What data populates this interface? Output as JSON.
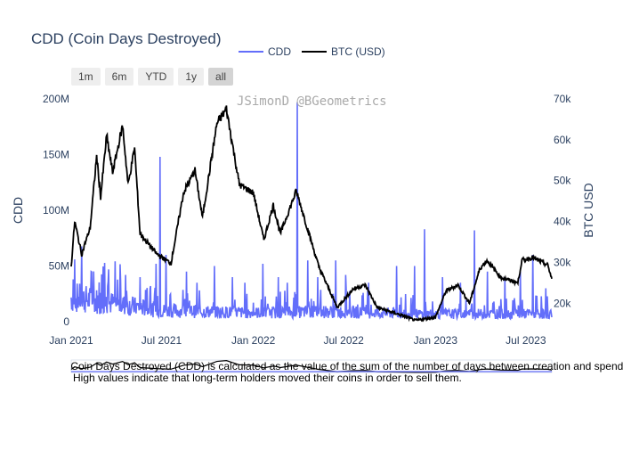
{
  "title": "CDD (Coin Days Destroyed)",
  "watermark": "JSimonD @BGeometrics",
  "legend": [
    {
      "name": "CDD",
      "color": "#636efa"
    },
    {
      "name": "BTC (USD)",
      "color": "#000000"
    }
  ],
  "range_buttons": [
    {
      "label": "1m",
      "active": false
    },
    {
      "label": "6m",
      "active": false
    },
    {
      "label": "YTD",
      "active": false
    },
    {
      "label": "1y",
      "active": false
    },
    {
      "label": "all",
      "active": true
    }
  ],
  "note_lines": [
    " Coin Days Destroyed (CDD) is calculated as the value of the sum of the number of days between creation and spend",
    "High values indicate that long-term holders moved their coins in order to sell them."
  ],
  "chart_data": {
    "type": "line",
    "x_range": [
      "2021-01-01",
      "2023-08-22"
    ],
    "x_ticks": [
      {
        "date": "2021-01-01",
        "label": "Jan 2021"
      },
      {
        "date": "2021-07-01",
        "label": "Jul 2021"
      },
      {
        "date": "2022-01-01",
        "label": "Jan 2022"
      },
      {
        "date": "2022-07-01",
        "label": "Jul 2022"
      },
      {
        "date": "2023-01-01",
        "label": "Jan 2023"
      },
      {
        "date": "2023-07-01",
        "label": "Jul 2023"
      }
    ],
    "y_left": {
      "label": "CDD",
      "range": [
        0,
        200000000
      ],
      "ticks": [
        {
          "v": 0,
          "label": "0"
        },
        {
          "v": 50000000,
          "label": "50M"
        },
        {
          "v": 100000000,
          "label": "100M"
        },
        {
          "v": 150000000,
          "label": "150M"
        },
        {
          "v": 200000000,
          "label": "200M"
        }
      ]
    },
    "y_right": {
      "label": "BTC USD",
      "range": [
        15500,
        70000
      ],
      "ticks": [
        {
          "v": 20000,
          "label": "20k"
        },
        {
          "v": 30000,
          "label": "30k"
        },
        {
          "v": 40000,
          "label": "40k"
        },
        {
          "v": 50000,
          "label": "50k"
        },
        {
          "v": 60000,
          "label": "60k"
        },
        {
          "v": 70000,
          "label": "70k"
        }
      ]
    },
    "grid": false,
    "series": [
      {
        "name": "CDD",
        "axis": "left",
        "color": "#636efa",
        "base": [
          [
            "2021-01-01",
            22000000
          ],
          [
            "2021-04-01",
            16000000
          ],
          [
            "2021-07-01",
            10000000
          ],
          [
            "2021-10-01",
            9000000
          ],
          [
            "2022-01-01",
            8000000
          ],
          [
            "2022-06-01",
            9000000
          ],
          [
            "2022-12-01",
            7000000
          ],
          [
            "2023-06-01",
            7000000
          ],
          [
            "2023-08-22",
            7000000
          ]
        ],
        "spikes": [
          [
            "2021-01-05",
            38000000
          ],
          [
            "2021-02-10",
            45000000
          ],
          [
            "2021-03-15",
            32000000
          ],
          [
            "2021-04-20",
            42000000
          ],
          [
            "2021-05-19",
            40000000
          ],
          [
            "2021-06-20",
            52000000
          ],
          [
            "2021-06-28",
            148000000
          ],
          [
            "2021-07-10",
            60000000
          ],
          [
            "2021-08-20",
            45000000
          ],
          [
            "2021-09-10",
            35000000
          ],
          [
            "2021-10-15",
            50000000
          ],
          [
            "2021-11-20",
            40000000
          ],
          [
            "2021-12-15",
            35000000
          ],
          [
            "2022-01-20",
            52000000
          ],
          [
            "2022-02-20",
            40000000
          ],
          [
            "2022-03-10",
            35000000
          ],
          [
            "2022-03-30",
            197000000
          ],
          [
            "2022-04-20",
            55000000
          ],
          [
            "2022-05-10",
            40000000
          ],
          [
            "2022-06-15",
            55000000
          ],
          [
            "2022-07-05",
            42000000
          ],
          [
            "2022-08-20",
            35000000
          ],
          [
            "2022-10-15",
            50000000
          ],
          [
            "2022-11-20",
            50000000
          ],
          [
            "2022-12-10",
            83000000
          ],
          [
            "2023-01-15",
            40000000
          ],
          [
            "2023-02-20",
            35000000
          ],
          [
            "2023-03-20",
            82000000
          ],
          [
            "2023-04-15",
            45000000
          ],
          [
            "2023-05-20",
            40000000
          ],
          [
            "2023-06-20",
            45000000
          ],
          [
            "2023-07-15",
            60000000
          ],
          [
            "2023-08-10",
            30000000
          ]
        ]
      },
      {
        "name": "BTC (USD)",
        "axis": "right",
        "color": "#000000",
        "points": [
          [
            "2021-01-01",
            29000
          ],
          [
            "2021-01-08",
            40000
          ],
          [
            "2021-01-22",
            32000
          ],
          [
            "2021-02-08",
            38500
          ],
          [
            "2021-02-21",
            56000
          ],
          [
            "2021-03-01",
            46000
          ],
          [
            "2021-03-13",
            61000
          ],
          [
            "2021-03-25",
            52000
          ],
          [
            "2021-04-14",
            63500
          ],
          [
            "2021-04-25",
            49000
          ],
          [
            "2021-05-08",
            58000
          ],
          [
            "2021-05-19",
            37000
          ],
          [
            "2021-06-22",
            32000
          ],
          [
            "2021-07-20",
            29800
          ],
          [
            "2021-08-14",
            47000
          ],
          [
            "2021-09-06",
            52500
          ],
          [
            "2021-09-21",
            41000
          ],
          [
            "2021-10-20",
            64000
          ],
          [
            "2021-11-08",
            67500
          ],
          [
            "2021-12-04",
            49000
          ],
          [
            "2022-01-01",
            47000
          ],
          [
            "2022-01-22",
            35500
          ],
          [
            "2022-02-10",
            44000
          ],
          [
            "2022-02-24",
            37000
          ],
          [
            "2022-03-28",
            47500
          ],
          [
            "2022-05-12",
            29000
          ],
          [
            "2022-06-18",
            19000
          ],
          [
            "2022-07-20",
            23500
          ],
          [
            "2022-08-13",
            24500
          ],
          [
            "2022-09-06",
            19000
          ],
          [
            "2022-11-08",
            16500
          ],
          [
            "2022-11-21",
            15800
          ],
          [
            "2023-01-01",
            16600
          ],
          [
            "2023-01-22",
            23000
          ],
          [
            "2023-02-15",
            24500
          ],
          [
            "2023-03-10",
            20000
          ],
          [
            "2023-03-31",
            28500
          ],
          [
            "2023-04-14",
            30500
          ],
          [
            "2023-05-12",
            26300
          ],
          [
            "2023-06-15",
            25000
          ],
          [
            "2023-06-23",
            30500
          ],
          [
            "2023-07-14",
            31200
          ],
          [
            "2023-08-14",
            29300
          ],
          [
            "2023-08-22",
            26000
          ]
        ]
      }
    ]
  }
}
